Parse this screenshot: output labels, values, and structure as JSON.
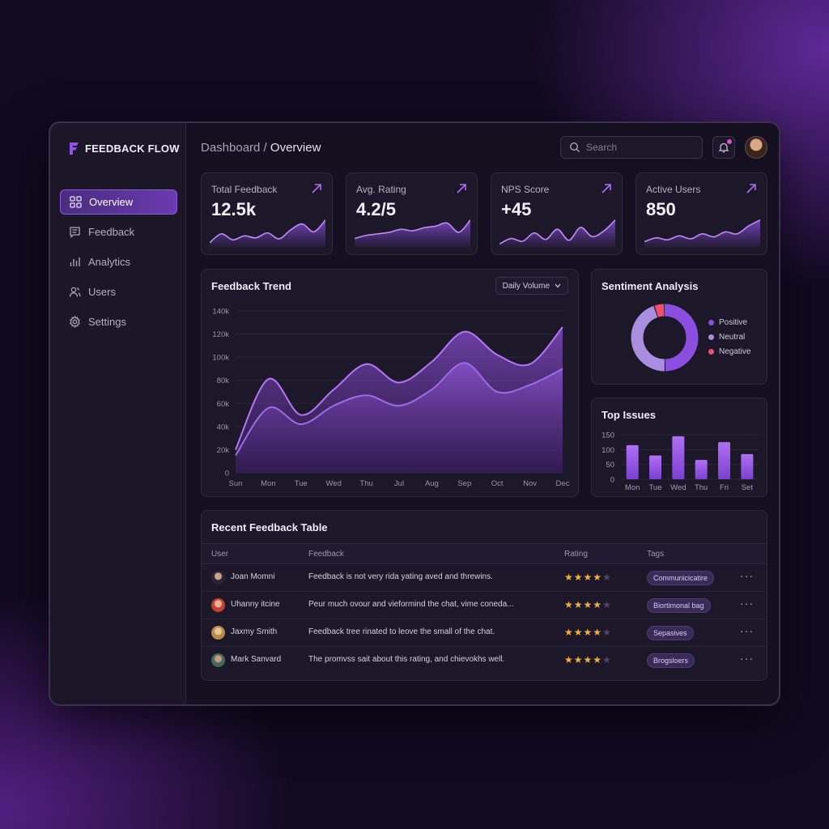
{
  "app": {
    "name": "FEEDBACK FLOW"
  },
  "sidebar": {
    "items": [
      {
        "label": "Overview",
        "icon": "grid-icon",
        "active": true
      },
      {
        "label": "Feedback",
        "icon": "message-icon",
        "active": false
      },
      {
        "label": "Analytics",
        "icon": "bar-chart-icon",
        "active": false
      },
      {
        "label": "Users",
        "icon": "users-icon",
        "active": false
      },
      {
        "label": "Settings",
        "icon": "gear-icon",
        "active": false
      }
    ]
  },
  "header": {
    "breadcrumb_root": "Dashboard",
    "breadcrumb_sep": " / ",
    "breadcrumb_current": "Overview",
    "search_placeholder": "Search",
    "notification_badge": true
  },
  "stats": [
    {
      "label": "Total Feedback",
      "value": "12.5k"
    },
    {
      "label": "Avg. Rating",
      "value": "4.2/5"
    },
    {
      "label": "NPS Score",
      "value": "+45"
    },
    {
      "label": "Active Users",
      "value": "850"
    }
  ],
  "trend": {
    "title": "Feedback Trend",
    "selector": "Daily Volume"
  },
  "sentiment": {
    "title": "Sentiment Analysis",
    "legend": [
      {
        "label": "Positive",
        "color": "#8a4ee0"
      },
      {
        "label": "Neutral",
        "color": "#a98ee0"
      },
      {
        "label": "Negative",
        "color": "#f0506e"
      }
    ]
  },
  "issues": {
    "title": "Top Issues"
  },
  "table": {
    "title": "Recent Feedback Table",
    "columns": [
      "User",
      "Feedback",
      "Rating",
      "Tags"
    ],
    "rows": [
      {
        "user": "Joan Momni",
        "feedback": "Feedback is not very rida yating aved and threwins.",
        "rating": 4,
        "tag": "Communicicatire",
        "avatar_color": "#c9a48a"
      },
      {
        "user": "Uhanny itcine",
        "feedback": "Peur much ovour and vieformind the chat, vime coneda...",
        "rating": 4,
        "tag": "Biortimonal bag",
        "avatar_color": "#d8563a"
      },
      {
        "user": "Jaxmy Smith",
        "feedback": "Feedback tree rinated to leove the small of the chat.",
        "rating": 4,
        "tag": "Sepasives",
        "avatar_color": "#d8b070"
      },
      {
        "user": "Mark Sanvard",
        "feedback": "The promvss sait about this rating, and chievokhs well.",
        "rating": 4,
        "tag": "Brogsloers",
        "avatar_color": "#5a8a78"
      }
    ]
  },
  "chart_data": [
    {
      "type": "area",
      "title": "Feedback Trend",
      "x": [
        "Sun",
        "Mon",
        "Tue",
        "Wed",
        "Thu",
        "Jul",
        "Aug",
        "Sep",
        "Oct",
        "Nov",
        "Dec"
      ],
      "series": [
        {
          "values": [
            20000,
            81000,
            50000,
            72000,
            94000,
            78000,
            96000,
            122000,
            102000,
            94000,
            126000
          ],
          "color": "#a86af0"
        },
        {
          "values": [
            15000,
            56000,
            42000,
            58000,
            67000,
            58000,
            72000,
            95000,
            70000,
            76000,
            90000
          ],
          "color": "#9a62e8"
        }
      ],
      "yticks": [
        "140k",
        "120k",
        "100k",
        "80k",
        "60k",
        "40k",
        "20k",
        "0"
      ],
      "ylim": [
        0,
        140000
      ]
    },
    {
      "type": "pie",
      "title": "Sentiment Analysis",
      "labels": [
        "Positive",
        "Neutral",
        "Negative"
      ],
      "values": [
        50,
        45,
        5
      ],
      "colors": [
        "#8a4ee0",
        "#a98ee0",
        "#f0506e"
      ],
      "donut": true
    },
    {
      "type": "bar",
      "title": "Top Issues",
      "categories": [
        "Mon",
        "Tue",
        "Wed",
        "Thu",
        "Fri",
        "Set"
      ],
      "values": [
        115,
        80,
        145,
        65,
        125,
        85
      ],
      "yticks": [
        "150",
        "100",
        "50",
        "0"
      ],
      "ylim": [
        0,
        150
      ]
    },
    {
      "type": "line",
      "title": "Total Feedback",
      "values": [
        5,
        14,
        8,
        12,
        10,
        15,
        9,
        18,
        24,
        16,
        28
      ]
    },
    {
      "type": "line",
      "title": "Avg. Rating",
      "values": [
        6,
        8,
        9,
        10,
        12,
        11,
        13,
        14,
        16,
        10,
        18
      ]
    },
    {
      "type": "line",
      "title": "NPS Score",
      "values": [
        4,
        10,
        7,
        16,
        9,
        20,
        8,
        22,
        12,
        18,
        30
      ]
    },
    {
      "type": "line",
      "title": "Active Users",
      "values": [
        6,
        10,
        8,
        12,
        9,
        14,
        11,
        16,
        14,
        22,
        28
      ]
    }
  ]
}
